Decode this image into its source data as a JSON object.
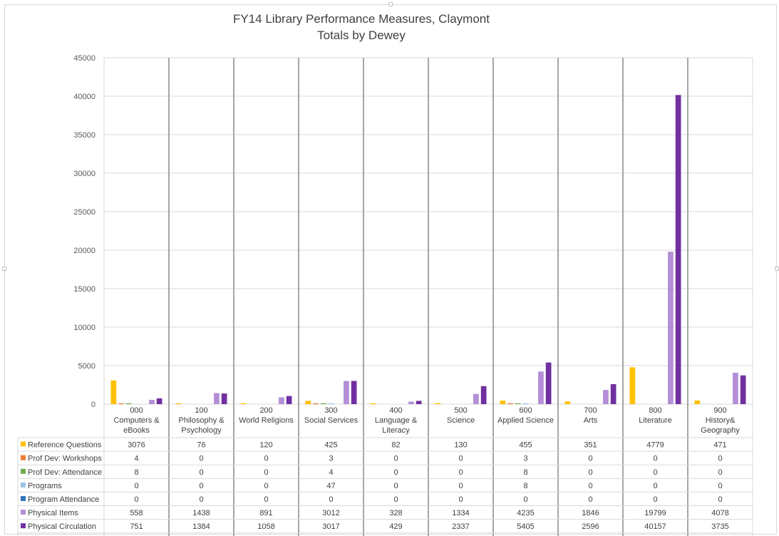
{
  "chart_data": {
    "type": "bar",
    "title": "FY14 Library Performance Measures, Claymont",
    "subtitle": "Totals by Dewey",
    "categories": [
      [
        "000",
        "Computers &",
        "eBooks"
      ],
      [
        "100",
        "Philosophy &",
        "Psychology"
      ],
      [
        "200",
        "World Religions"
      ],
      [
        "300",
        "Social Services"
      ],
      [
        "400",
        "Language &",
        "Literacy"
      ],
      [
        "500",
        "Science"
      ],
      [
        "600",
        "Applied Science"
      ],
      [
        "700",
        "Arts"
      ],
      [
        "800",
        "Literature"
      ],
      [
        "900",
        "History&",
        "Geography"
      ]
    ],
    "ylim": [
      0,
      45000
    ],
    "yticks": [
      "0",
      "5000",
      "10000",
      "15000",
      "20000",
      "25000",
      "30000",
      "35000",
      "40000",
      "45000"
    ],
    "grid": true,
    "legend": "data-table",
    "series": [
      {
        "name": "Reference Questions",
        "color": "#FFC000",
        "values": [
          3076,
          76,
          120,
          425,
          82,
          130,
          455,
          351,
          4779,
          471
        ]
      },
      {
        "name": "Prof Dev: Workshops",
        "color": "#ED7D31",
        "values": [
          4,
          0,
          0,
          3,
          0,
          0,
          3,
          0,
          0,
          0
        ]
      },
      {
        "name": "Prof Dev: Attendance",
        "color": "#70AD47",
        "values": [
          8,
          0,
          0,
          4,
          0,
          0,
          8,
          0,
          0,
          0
        ]
      },
      {
        "name": "Programs",
        "color": "#9DC3E6",
        "values": [
          0,
          0,
          0,
          47,
          0,
          0,
          8,
          0,
          0,
          0
        ]
      },
      {
        "name": "Program Attendance",
        "color": "#2E75B6",
        "values": [
          0,
          0,
          0,
          0,
          0,
          0,
          0,
          0,
          0,
          0
        ]
      },
      {
        "name": "Physical Items",
        "color": "#B48FD8",
        "values": [
          558,
          1438,
          891,
          3012,
          328,
          1334,
          4235,
          1846,
          19799,
          4078
        ]
      },
      {
        "name": "Physical Circulation",
        "color": "#7030A0",
        "values": [
          751,
          1384,
          1058,
          3017,
          429,
          2337,
          5405,
          2596,
          40157,
          3735
        ]
      }
    ]
  }
}
